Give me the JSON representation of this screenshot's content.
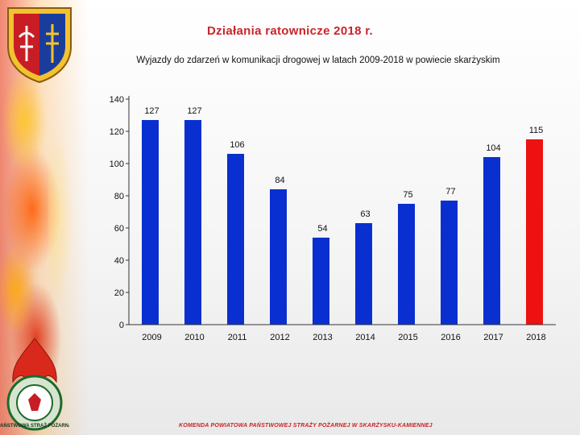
{
  "header": {
    "title": "Działania ratownicze 2018 r.",
    "subtitle": "Wyjazdy do zdarzeń w komunikacji drogowej w latach 2009-2018 w  powiecie skarżyskim"
  },
  "footer": {
    "text": "KOMENDA POWIATOWA PAŃSTWOWEJ STRAŻY POŻARNEJ W SKARŻYSKU-KAMIENNEJ"
  },
  "emblem": {
    "text": "PAŃSTWOWA STRAŻ POŻARNA"
  },
  "colors": {
    "title": "#c9252b",
    "bar_default": "#0a2fd0",
    "bar_highlight": "#ee1111"
  },
  "chart_data": {
    "type": "bar",
    "categories": [
      "2009",
      "2010",
      "2011",
      "2012",
      "2013",
      "2014",
      "2015",
      "2016",
      "2017",
      "2018"
    ],
    "values": [
      127,
      127,
      106,
      84,
      54,
      63,
      75,
      77,
      104,
      115
    ],
    "highlight_index": 9,
    "ylim": [
      0,
      140
    ],
    "yticks": [
      0,
      20,
      40,
      60,
      80,
      100,
      120,
      140
    ],
    "grid": false,
    "legend": "none"
  }
}
